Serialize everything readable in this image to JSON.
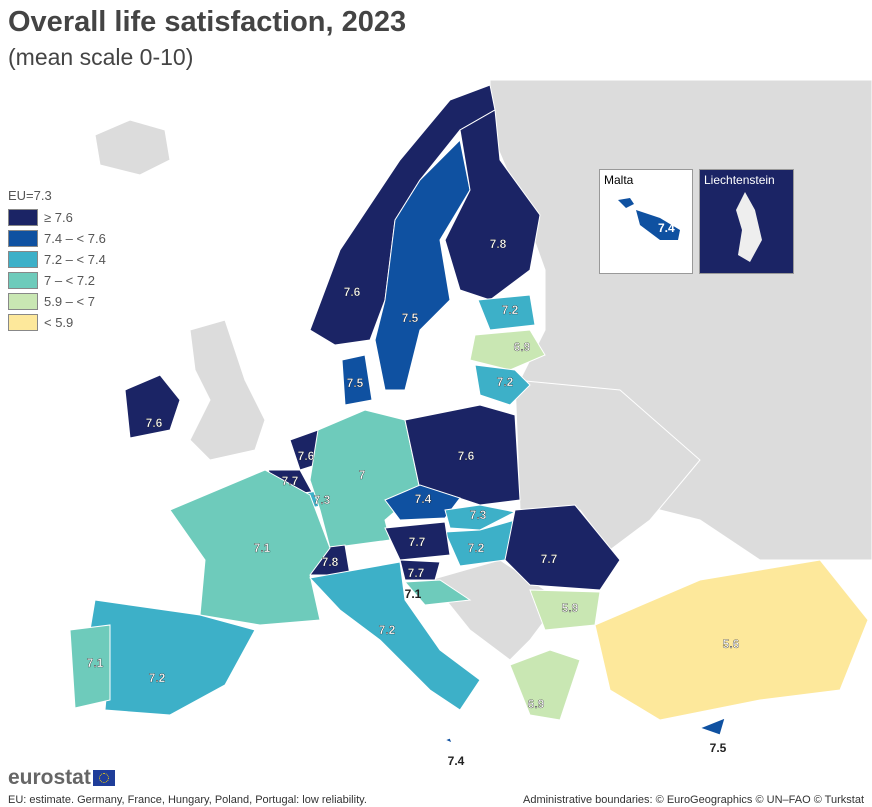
{
  "title": "Overall life satisfaction, 2023",
  "subtitle": "(mean scale 0-10)",
  "legend": {
    "eu": "EU=7.3",
    "classes": [
      {
        "label": "≥ 7.6",
        "color": "#1b2465"
      },
      {
        "label": "7.4 – < 7.6",
        "color": "#0f51a1"
      },
      {
        "label": "7.2 – < 7.4",
        "color": "#3db0c8"
      },
      {
        "label": "7 – < 7.2",
        "color": "#6ecbbb"
      },
      {
        "label": "5.9 – < 7",
        "color": "#c9e7b3"
      },
      {
        "label": "< 5.9",
        "color": "#fde89b"
      }
    ]
  },
  "no_data_color": "#dcdcdc",
  "countries": [
    {
      "name": "Norway",
      "value": "7.6"
    },
    {
      "name": "Sweden",
      "value": "7.5"
    },
    {
      "name": "Finland",
      "value": "7.8"
    },
    {
      "name": "Estonia",
      "value": "7.2"
    },
    {
      "name": "Latvia",
      "value": "6.9"
    },
    {
      "name": "Lithuania",
      "value": "7.2"
    },
    {
      "name": "Denmark",
      "value": "7.5"
    },
    {
      "name": "Ireland",
      "value": "7.6"
    },
    {
      "name": "Netherlands",
      "value": "7.6"
    },
    {
      "name": "Belgium",
      "value": "7.7"
    },
    {
      "name": "Luxembourg",
      "value": "7.3"
    },
    {
      "name": "Germany",
      "value": "7"
    },
    {
      "name": "Poland",
      "value": "7.6"
    },
    {
      "name": "Czechia",
      "value": "7.4"
    },
    {
      "name": "Slovakia",
      "value": "7.3"
    },
    {
      "name": "Hungary",
      "value": "7.2"
    },
    {
      "name": "Austria",
      "value": "7.7"
    },
    {
      "name": "Switzerland",
      "value": "7.8"
    },
    {
      "name": "Slovenia",
      "value": "7.7"
    },
    {
      "name": "Croatia",
      "value": "7.1"
    },
    {
      "name": "France",
      "value": "7.1"
    },
    {
      "name": "Italy",
      "value": "7.2"
    },
    {
      "name": "Spain",
      "value": "7.2"
    },
    {
      "name": "Portugal",
      "value": "7.1"
    },
    {
      "name": "Romania",
      "value": "7.7"
    },
    {
      "name": "Bulgaria",
      "value": "5.9"
    },
    {
      "name": "Greece",
      "value": "6.9"
    },
    {
      "name": "Türkiye",
      "value": "5.6"
    },
    {
      "name": "Cyprus",
      "value": "7.5"
    },
    {
      "name": "Malta",
      "value": "7.4"
    }
  ],
  "insets": {
    "malta": "Malta",
    "liechtenstein": "Liechtenstein",
    "malta_value": "7.4"
  },
  "footer": {
    "logo": "eurostat",
    "note_left": "EU: estimate. Germany, France, Hungary, Poland, Portugal: low reliability.",
    "note_right": "Administrative boundaries: © EuroGeographics © UN–FAO © Turkstat"
  }
}
